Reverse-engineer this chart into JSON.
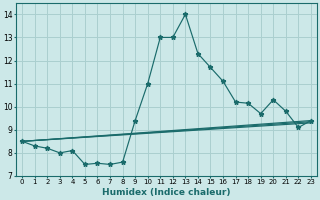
{
  "xlabel": "Humidex (Indice chaleur)",
  "bg_color": "#cce8e8",
  "line_color": "#1a6b6b",
  "grid_color": "#aacfcf",
  "xlim": [
    -0.5,
    23.5
  ],
  "ylim": [
    7,
    14.5
  ],
  "xticks": [
    0,
    1,
    2,
    3,
    4,
    5,
    6,
    7,
    8,
    9,
    10,
    11,
    12,
    13,
    14,
    15,
    16,
    17,
    18,
    19,
    20,
    21,
    22,
    23
  ],
  "yticks": [
    7,
    8,
    9,
    10,
    11,
    12,
    13,
    14
  ],
  "main_x": [
    0,
    1,
    2,
    3,
    4,
    5,
    6,
    7,
    8,
    9,
    10,
    11,
    12,
    13,
    14,
    15,
    16,
    17,
    18,
    19,
    20,
    21,
    22,
    23
  ],
  "main_y": [
    8.5,
    8.3,
    8.2,
    8.0,
    8.1,
    7.5,
    7.55,
    7.5,
    7.6,
    9.4,
    11.0,
    13.0,
    13.0,
    14.0,
    12.3,
    11.7,
    11.1,
    10.2,
    10.15,
    9.7,
    10.3,
    9.8,
    9.1,
    9.4
  ],
  "smooth_lines": [
    {
      "x": [
        0,
        23
      ],
      "y": [
        8.5,
        9.4
      ]
    },
    {
      "x": [
        0,
        23
      ],
      "y": [
        8.5,
        9.35
      ]
    },
    {
      "x": [
        0,
        23
      ],
      "y": [
        8.5,
        9.3
      ]
    }
  ]
}
